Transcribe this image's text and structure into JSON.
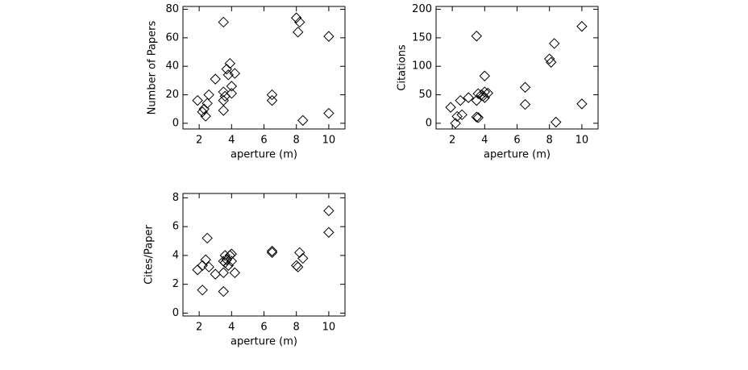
{
  "chart_data": [
    {
      "type": "scatter",
      "xlabel": "aperture (m)",
      "ylabel": "Number of Papers",
      "xlim": [
        1,
        11
      ],
      "ylim": [
        -4,
        82
      ],
      "xticks": [
        2,
        4,
        6,
        8,
        10
      ],
      "yticks": [
        0,
        20,
        40,
        60,
        80
      ],
      "x": [
        1.9,
        2.2,
        2.3,
        2.4,
        2.5,
        2.6,
        3.0,
        3.5,
        3.5,
        3.5,
        3.5,
        3.6,
        3.7,
        3.8,
        3.9,
        4.0,
        4.0,
        4.2,
        6.5,
        6.5,
        8.0,
        8.1,
        8.2,
        8.4,
        10.0,
        10.0
      ],
      "values": [
        16,
        8,
        10,
        5,
        14,
        20,
        31,
        71,
        9,
        16,
        22,
        19,
        38,
        34,
        42,
        26,
        21,
        35,
        20,
        16,
        74,
        64,
        71,
        2,
        61,
        7
      ]
    },
    {
      "type": "scatter",
      "xlabel": "aperture (m)",
      "ylabel": "Citations",
      "xlim": [
        1,
        11
      ],
      "ylim": [
        -10,
        205
      ],
      "xticks": [
        2,
        4,
        6,
        8,
        10
      ],
      "yticks": [
        0,
        50,
        100,
        150,
        200
      ],
      "x": [
        1.9,
        2.2,
        2.3,
        2.5,
        2.6,
        3.0,
        3.5,
        3.5,
        3.6,
        3.5,
        3.6,
        3.8,
        4.0,
        4.0,
        4.0,
        4.2,
        3.9,
        6.5,
        6.5,
        8.0,
        8.1,
        8.3,
        8.4,
        10.0,
        10.0
      ],
      "values": [
        28,
        0,
        12,
        40,
        15,
        45,
        153,
        11,
        10,
        40,
        52,
        50,
        83,
        45,
        55,
        53,
        48,
        63,
        33,
        113,
        107,
        140,
        2,
        170,
        34
      ]
    },
    {
      "type": "scatter",
      "xlabel": "aperture (m)",
      "ylabel": "Cites/Paper",
      "xlim": [
        1,
        11
      ],
      "ylim": [
        -0.2,
        8.3
      ],
      "xticks": [
        2,
        4,
        6,
        8,
        10
      ],
      "yticks": [
        0,
        2,
        4,
        6,
        8
      ],
      "x": [
        1.9,
        2.2,
        2.2,
        2.4,
        2.5,
        2.6,
        3.0,
        3.5,
        3.5,
        3.5,
        3.6,
        3.6,
        3.7,
        3.8,
        3.9,
        4.0,
        4.0,
        4.2,
        6.5,
        6.5,
        8.0,
        8.1,
        8.2,
        8.4,
        10.0,
        10.0
      ],
      "values": [
        3.0,
        1.6,
        3.3,
        3.7,
        5.2,
        3.2,
        2.7,
        3.6,
        1.5,
        2.8,
        4.0,
        3.5,
        3.7,
        3.3,
        4.0,
        4.1,
        3.6,
        2.8,
        4.2,
        4.3,
        3.3,
        3.2,
        4.2,
        3.8,
        7.1,
        5.6
      ]
    }
  ]
}
